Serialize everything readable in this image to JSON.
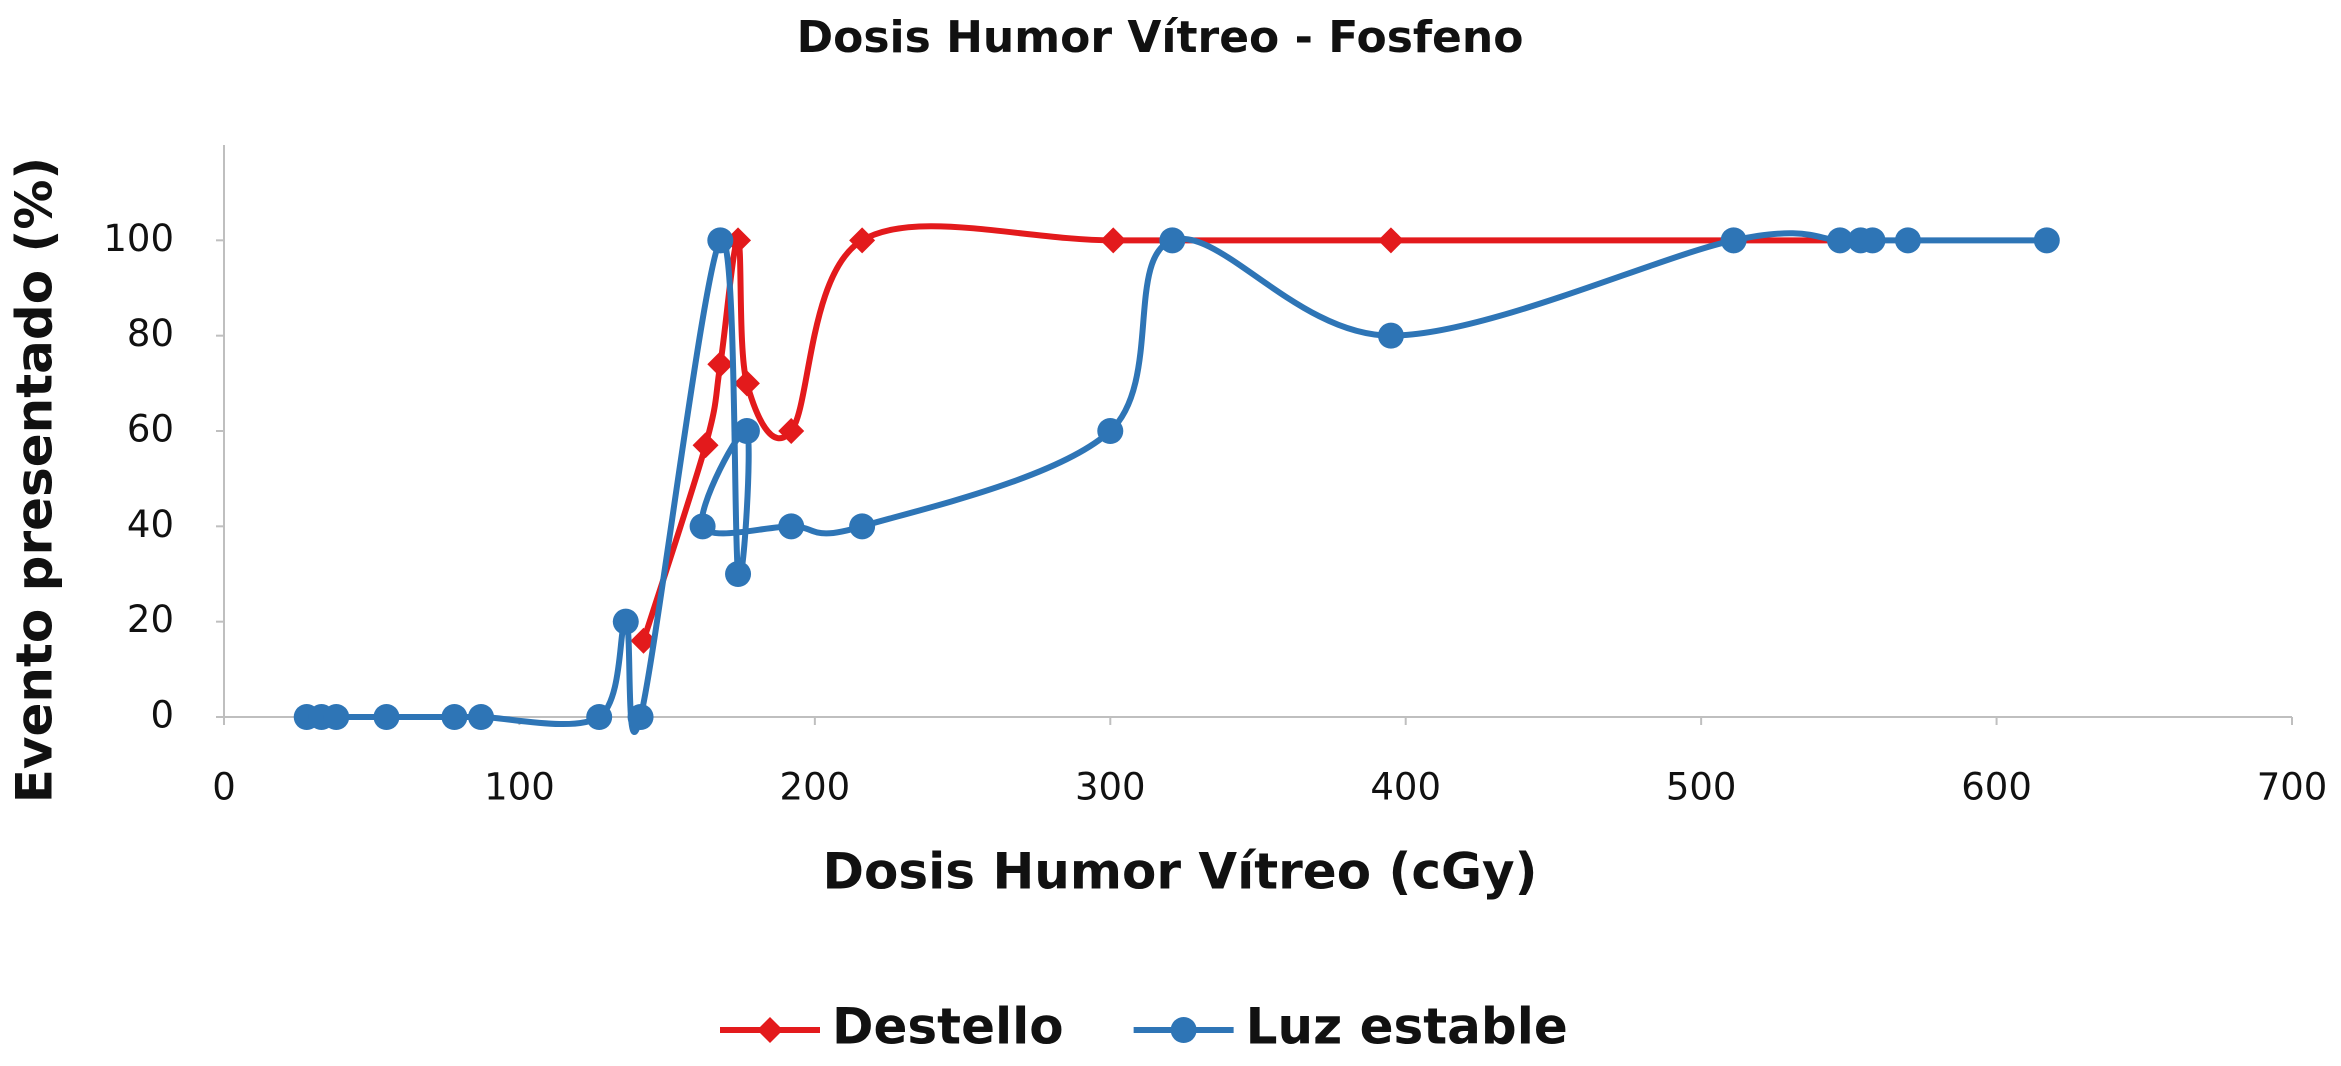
{
  "chart_data": {
    "type": "line",
    "title": "Dosis Humor Vítreo - Fosfeno",
    "x_label": "Dosis Humor Vítreo (cGy)",
    "y_label": "Evento presentado (%)",
    "xlim": [
      0,
      700
    ],
    "xticks": [
      0,
      100,
      200,
      300,
      400,
      500,
      600,
      700
    ],
    "ylim": [
      0,
      120
    ],
    "yticks": [
      0,
      20,
      40,
      60,
      80,
      100
    ],
    "legend": "bottom",
    "series": [
      {
        "name": "Destello",
        "color": "#e31a1c",
        "marker": "diamond",
        "x": [
          142,
          163,
          168,
          174,
          177,
          192,
          216,
          301,
          395,
          511,
          547
        ],
        "values": [
          16,
          57,
          74,
          100,
          70,
          60,
          100,
          100,
          100,
          100,
          100
        ]
      },
      {
        "name": "Luz estable",
        "color": "#2e75b6",
        "marker": "circle",
        "x": [
          28,
          33,
          38,
          55,
          78,
          87,
          127,
          136,
          141,
          168,
          174,
          177,
          162,
          192,
          216,
          300,
          321,
          395,
          511,
          547,
          554,
          558,
          570,
          617
        ],
        "values": [
          0,
          0,
          0,
          0,
          0,
          0,
          0,
          20,
          0,
          100,
          30,
          60,
          40,
          40,
          40,
          60,
          100,
          80,
          100,
          100,
          100,
          100,
          100,
          100
        ]
      }
    ]
  }
}
